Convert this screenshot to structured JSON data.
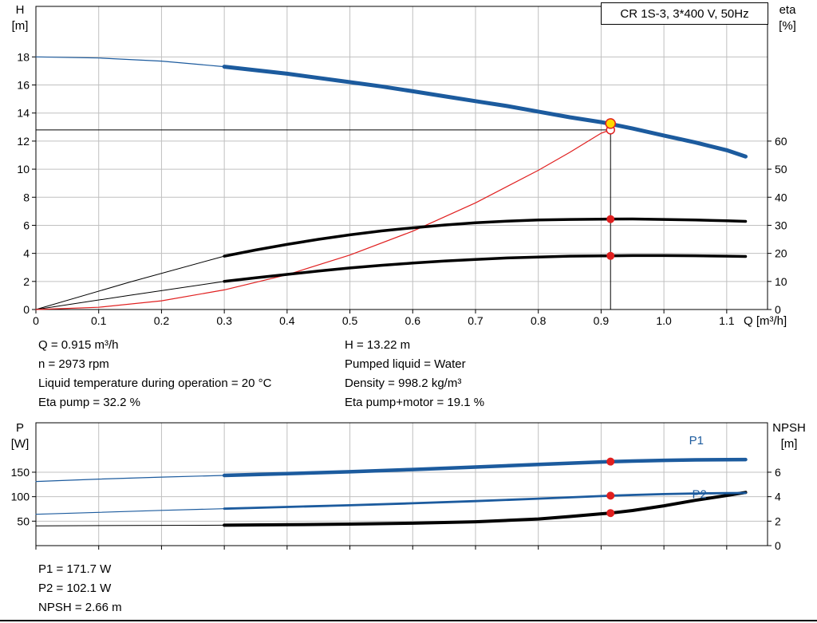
{
  "colors": {
    "curve_blue": "#1c5b9e",
    "curve_black": "#000000",
    "red": "#e01f1f",
    "duty_fill": "#ffd800",
    "grid": "#c0c0c0"
  },
  "info_top": {
    "left": [
      "Q = 0.915 m³/h",
      "n = 2973 rpm",
      "Liquid temperature during operation = 20 °C",
      "Eta pump = 32.2 %"
    ],
    "right": [
      "H = 13.22 m",
      "Pumped liquid = Water",
      "Density = 998.2 kg/m³",
      "Eta pump+motor = 19.1 %"
    ]
  },
  "info_bottom": [
    "P1 = 171.7 W",
    "P2 = 102.1 W",
    "NPSH = 2.66 m"
  ],
  "chart_data": [
    {
      "type": "line",
      "id": "qh-eta-chart",
      "title": "CR 1S-3, 3*400 V, 50Hz",
      "xlabel": "Q [m³/h]",
      "ylabel_left": "H",
      "ylabel_left_unit": "[m]",
      "ylabel_right": "eta",
      "ylabel_right_unit": "[%]",
      "xlim": [
        0,
        1.165
      ],
      "ylim_left": [
        0,
        21.6
      ],
      "ylim_right": [
        0,
        108
      ],
      "x_ticks": [
        "0",
        "0.1",
        "0.2",
        "0.3",
        "0.4",
        "0.5",
        "0.6",
        "0.7",
        "0.8",
        "0.9",
        "1.0",
        "1.1"
      ],
      "y_ticks_left": [
        0,
        2,
        4,
        6,
        8,
        10,
        12,
        14,
        16,
        18
      ],
      "y_ticks_right": [
        0,
        10,
        20,
        30,
        40,
        50,
        60
      ],
      "grid": true,
      "series": [
        {
          "id": "qh-ext",
          "name": "QH curve (extension)",
          "axis": "left",
          "color": "#1c5b9e",
          "width": 1.2,
          "points": [
            [
              0,
              18.0
            ],
            [
              0.1,
              17.92
            ],
            [
              0.2,
              17.7
            ],
            [
              0.3,
              17.3
            ]
          ]
        },
        {
          "id": "eta-pump-ext",
          "name": "Eta pump (extension)",
          "axis": "right",
          "color": "#000000",
          "width": 1,
          "points": [
            [
              0,
              0
            ],
            [
              0.15,
              9.8
            ],
            [
              0.3,
              19.0
            ]
          ]
        },
        {
          "id": "eta-pump-motor-ext",
          "name": "Eta pump+motor (extension)",
          "axis": "right",
          "color": "#000000",
          "width": 1,
          "points": [
            [
              0,
              0
            ],
            [
              0.15,
              5.1
            ],
            [
              0.3,
              10.0
            ]
          ]
        },
        {
          "id": "system-curve",
          "name": "System curve",
          "axis": "left",
          "color": "#e01f1f",
          "width": 1.2,
          "points": [
            [
              0,
              0
            ],
            [
              0.1,
              0.16
            ],
            [
              0.2,
              0.62
            ],
            [
              0.3,
              1.4
            ],
            [
              0.4,
              2.48
            ],
            [
              0.5,
              3.88
            ],
            [
              0.6,
              5.58
            ],
            [
              0.7,
              7.6
            ],
            [
              0.8,
              9.92
            ],
            [
              0.85,
              11.2
            ],
            [
              0.9,
              12.56
            ],
            [
              0.915,
              12.8
            ]
          ]
        },
        {
          "id": "eta-pump",
          "name": "Eta pump",
          "axis": "right",
          "color": "#000000",
          "width": 3.5,
          "points": [
            [
              0.3,
              19.0
            ],
            [
              0.35,
              21.2
            ],
            [
              0.4,
              23.2
            ],
            [
              0.45,
              25.0
            ],
            [
              0.5,
              26.6
            ],
            [
              0.55,
              28.0
            ],
            [
              0.6,
              29.1
            ],
            [
              0.65,
              30.1
            ],
            [
              0.7,
              30.9
            ],
            [
              0.75,
              31.5
            ],
            [
              0.8,
              31.9
            ],
            [
              0.85,
              32.1
            ],
            [
              0.9,
              32.2
            ],
            [
              0.95,
              32.25
            ],
            [
              1.0,
              32.1
            ],
            [
              1.05,
              31.9
            ],
            [
              1.1,
              31.6
            ],
            [
              1.13,
              31.4
            ]
          ]
        },
        {
          "id": "eta-pump-motor",
          "name": "Eta pump+motor",
          "axis": "right",
          "color": "#000000",
          "width": 3.5,
          "points": [
            [
              0.3,
              10.0
            ],
            [
              0.35,
              11.3
            ],
            [
              0.4,
              12.5
            ],
            [
              0.45,
              13.7
            ],
            [
              0.5,
              14.8
            ],
            [
              0.55,
              15.75
            ],
            [
              0.6,
              16.55
            ],
            [
              0.65,
              17.25
            ],
            [
              0.7,
              17.85
            ],
            [
              0.75,
              18.35
            ],
            [
              0.8,
              18.7
            ],
            [
              0.85,
              19.0
            ],
            [
              0.9,
              19.1
            ],
            [
              0.95,
              19.2
            ],
            [
              1.0,
              19.2
            ],
            [
              1.05,
              19.15
            ],
            [
              1.1,
              19.0
            ],
            [
              1.13,
              18.9
            ]
          ]
        },
        {
          "id": "qh",
          "name": "QH curve",
          "axis": "left",
          "color": "#1c5b9e",
          "width": 5,
          "points": [
            [
              0.3,
              17.3
            ],
            [
              0.35,
              17.05
            ],
            [
              0.4,
              16.8
            ],
            [
              0.45,
              16.5
            ],
            [
              0.5,
              16.2
            ],
            [
              0.55,
              15.9
            ],
            [
              0.6,
              15.55
            ],
            [
              0.65,
              15.2
            ],
            [
              0.7,
              14.85
            ],
            [
              0.75,
              14.5
            ],
            [
              0.8,
              14.1
            ],
            [
              0.85,
              13.7
            ],
            [
              0.9,
              13.35
            ],
            [
              0.915,
              13.22
            ],
            [
              0.95,
              12.9
            ],
            [
              1.0,
              12.4
            ],
            [
              1.05,
              11.9
            ],
            [
              1.1,
              11.35
            ],
            [
              1.13,
              10.9
            ]
          ]
        }
      ],
      "markers": [
        {
          "kind": "vline",
          "axis": "left",
          "x": 0.915,
          "y": 13.25
        },
        {
          "kind": "hline",
          "axis": "left",
          "x": 0.915,
          "y": 12.8
        },
        {
          "kind": "open",
          "axis": "left",
          "x": 0.915,
          "y": 12.8,
          "color": "#e01f1f"
        },
        {
          "kind": "dot",
          "axis": "right",
          "x": 0.915,
          "y": 32.2,
          "color": "#e01f1f"
        },
        {
          "kind": "dot",
          "axis": "right",
          "x": 0.915,
          "y": 19.1,
          "color": "#e01f1f"
        },
        {
          "kind": "duty",
          "axis": "left",
          "x": 0.915,
          "y": 13.25,
          "fill": "#ffd800",
          "stroke": "#e01f1f"
        }
      ],
      "annotations": [],
      "duty_point": {
        "Q": 0.915,
        "H": 13.22,
        "eta_pump": 32.2,
        "eta_pump_motor": 19.1
      }
    },
    {
      "type": "line",
      "id": "power-npsh-chart",
      "title": "",
      "xlabel": "",
      "ylabel_left": "P",
      "ylabel_left_unit": "[W]",
      "ylabel_right": "NPSH",
      "ylabel_right_unit": "[m]",
      "xlim": [
        0,
        1.165
      ],
      "ylim_left": [
        0,
        251
      ],
      "ylim_right": [
        0,
        10.04
      ],
      "x_ticks": [
        "0",
        "0.1",
        "0.2",
        "0.3",
        "0.4",
        "0.5",
        "0.6",
        "0.7",
        "0.8",
        "0.9",
        "1.0",
        "1.1"
      ],
      "y_ticks_left": [
        50,
        100,
        150
      ],
      "y_ticks_right": [
        0,
        2,
        4,
        6
      ],
      "grid": true,
      "series": [
        {
          "id": "p1-ext",
          "name": "P1 (extension)",
          "axis": "left",
          "color": "#1c5b9e",
          "width": 1.2,
          "points": [
            [
              0,
              131
            ],
            [
              0.1,
              136
            ],
            [
              0.2,
              140
            ],
            [
              0.3,
              143.5
            ]
          ]
        },
        {
          "id": "p2-ext",
          "name": "P2 (extension)",
          "axis": "left",
          "color": "#1c5b9e",
          "width": 1.2,
          "points": [
            [
              0,
              64
            ],
            [
              0.1,
              68
            ],
            [
              0.2,
              72
            ],
            [
              0.3,
              75.5
            ]
          ]
        },
        {
          "id": "npsh-ext",
          "name": "NPSH (extension)",
          "axis": "right",
          "color": "#000000",
          "width": 1,
          "points": [
            [
              0,
              1.62
            ],
            [
              0.15,
              1.64
            ],
            [
              0.3,
              1.67
            ]
          ]
        },
        {
          "id": "npsh",
          "name": "NPSH",
          "axis": "right",
          "color": "#000000",
          "width": 4,
          "points": [
            [
              0.3,
              1.67
            ],
            [
              0.4,
              1.71
            ],
            [
              0.5,
              1.76
            ],
            [
              0.6,
              1.83
            ],
            [
              0.7,
              1.95
            ],
            [
              0.8,
              2.18
            ],
            [
              0.85,
              2.38
            ],
            [
              0.9,
              2.6
            ],
            [
              0.915,
              2.66
            ],
            [
              0.95,
              2.87
            ],
            [
              1.0,
              3.25
            ],
            [
              1.05,
              3.7
            ],
            [
              1.1,
              4.1
            ],
            [
              1.13,
              4.35
            ]
          ]
        },
        {
          "id": "p2",
          "name": "P2",
          "axis": "left",
          "color": "#1c5b9e",
          "width": 2.8,
          "points": [
            [
              0.3,
              75.5
            ],
            [
              0.4,
              79
            ],
            [
              0.5,
              82.5
            ],
            [
              0.6,
              86.5
            ],
            [
              0.7,
              91
            ],
            [
              0.8,
              96
            ],
            [
              0.9,
              101.2
            ],
            [
              0.915,
              102.1
            ],
            [
              0.95,
              103.5
            ],
            [
              1.0,
              105.3
            ],
            [
              1.05,
              106.6
            ],
            [
              1.1,
              107.3
            ],
            [
              1.13,
              107.5
            ]
          ]
        },
        {
          "id": "p1",
          "name": "P1",
          "axis": "left",
          "color": "#1c5b9e",
          "width": 4.5,
          "points": [
            [
              0.3,
              143.5
            ],
            [
              0.4,
              147
            ],
            [
              0.5,
              151
            ],
            [
              0.6,
              155.5
            ],
            [
              0.7,
              160.5
            ],
            [
              0.8,
              166
            ],
            [
              0.9,
              171
            ],
            [
              0.915,
              171.7
            ],
            [
              0.95,
              172.8
            ],
            [
              1.0,
              174.2
            ],
            [
              1.05,
              175.2
            ],
            [
              1.1,
              175.7
            ],
            [
              1.13,
              175.8
            ]
          ]
        }
      ],
      "markers": [
        {
          "kind": "dot",
          "axis": "left",
          "x": 0.915,
          "y": 171.7,
          "color": "#e01f1f"
        },
        {
          "kind": "dot",
          "axis": "left",
          "x": 0.915,
          "y": 102.1,
          "color": "#e01f1f"
        },
        {
          "kind": "dot",
          "axis": "right",
          "x": 0.915,
          "y": 2.66,
          "color": "#e01f1f"
        }
      ],
      "annotations": [
        {
          "text": "P1",
          "axis": "left",
          "x": 1.04,
          "y": 207,
          "color": "#1c5b9e"
        },
        {
          "text": "P2",
          "axis": "left",
          "x": 1.045,
          "y": 97,
          "color": "#1c5b9e"
        }
      ],
      "duty_point": {
        "Q": 0.915,
        "P1": 171.7,
        "P2": 102.1,
        "NPSH": 2.66
      }
    }
  ]
}
